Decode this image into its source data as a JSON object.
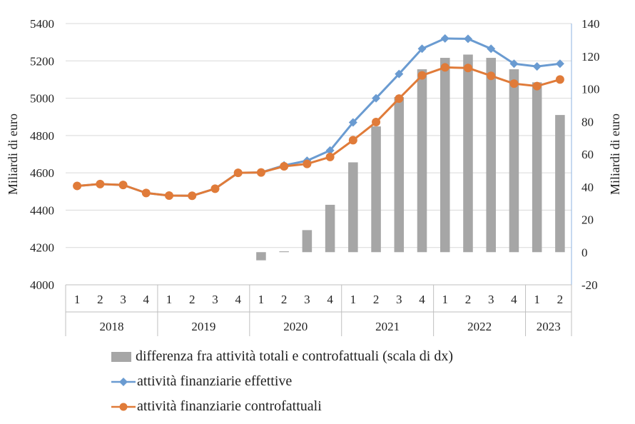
{
  "chart_data": {
    "type": "bar",
    "categories": [
      "1",
      "2",
      "3",
      "4",
      "1",
      "2",
      "3",
      "4",
      "1",
      "2",
      "3",
      "4",
      "1",
      "2",
      "3",
      "4",
      "1",
      "2",
      "3",
      "4",
      "1",
      "2"
    ],
    "years": [
      {
        "label": "2018",
        "quarters": 4
      },
      {
        "label": "2019",
        "quarters": 4
      },
      {
        "label": "2020",
        "quarters": 4
      },
      {
        "label": "2021",
        "quarters": 4
      },
      {
        "label": "2022",
        "quarters": 4
      },
      {
        "label": "2023",
        "quarters": 2
      }
    ],
    "ylabel_left": "Miliardi di euro",
    "ylabel_right": "Miliardi di euro",
    "ylim_left": [
      4000,
      5400
    ],
    "yticks_left": [
      4000,
      4200,
      4400,
      4600,
      4800,
      5000,
      5200,
      5400
    ],
    "ylim_right": [
      -20,
      140
    ],
    "yticks_right": [
      -20,
      0,
      20,
      40,
      60,
      80,
      100,
      120,
      140
    ],
    "grid": true,
    "legend_position": "bottom",
    "series": [
      {
        "name": "differenza fra attività totali e controfattuali (scala di dx)",
        "type": "bar",
        "axis": "right",
        "color": "#a6a6a6",
        "values": [
          null,
          null,
          null,
          null,
          null,
          null,
          null,
          null,
          -5,
          0.5,
          13.5,
          29,
          55,
          77,
          95,
          112,
          119,
          121,
          119,
          112,
          104,
          84
        ]
      },
      {
        "name": "attività finanziarie effettive",
        "type": "line",
        "axis": "left",
        "color": "#6a9bd1",
        "marker": "diamond",
        "values": [
          4530,
          4540,
          4535,
          4492,
          4478,
          4477,
          4515,
          4600,
          4602,
          4640,
          4665,
          4720,
          4870,
          5000,
          5130,
          5265,
          5320,
          5318,
          5265,
          5185,
          5170,
          5185
        ]
      },
      {
        "name": "attività finanziarie controfattuali",
        "type": "line",
        "axis": "left",
        "color": "#e07b39",
        "marker": "circle",
        "values": [
          4530,
          4540,
          4535,
          4492,
          4478,
          4477,
          4515,
          4600,
          4602,
          4635,
          4648,
          4685,
          4775,
          4872,
          4998,
          5122,
          5165,
          5162,
          5120,
          5078,
          5065,
          5100
        ]
      }
    ]
  }
}
